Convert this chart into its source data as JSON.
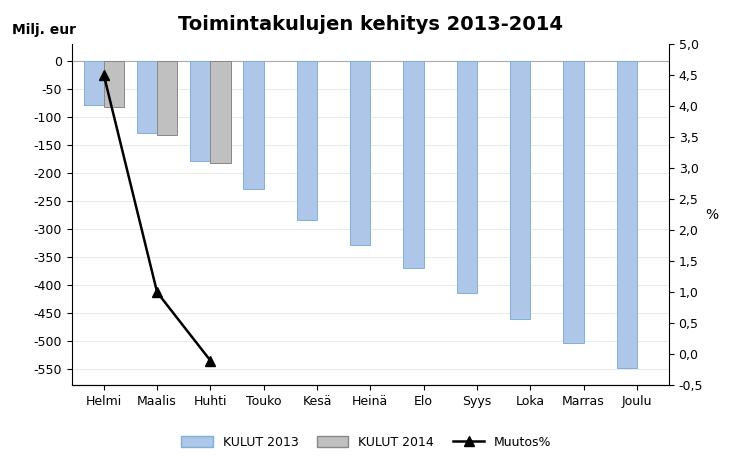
{
  "title": "Toimintakulujen kehitys 2013-2014",
  "ylabel_left": "Milj. eur",
  "ylabel_right": "%",
  "categories": [
    "Helmi",
    "Maalis",
    "Huhti",
    "Touko",
    "Kesä",
    "Heinä",
    "Elo",
    "Syys",
    "Loka",
    "Marras",
    "Joulu"
  ],
  "kulut2013": [
    -80,
    -130,
    -180,
    -230,
    -285,
    -330,
    -370,
    -415,
    -462,
    -505,
    -548
  ],
  "kulut2014": [
    -82,
    -133,
    -182,
    null,
    null,
    null,
    null,
    null,
    null,
    null,
    null
  ],
  "muutos_pct": [
    4.5,
    1.0,
    -0.1,
    null,
    null,
    null,
    null,
    null,
    null,
    null,
    null
  ],
  "bar_color_2013": "#aec6e8",
  "bar_color_2014": "#c0c0c0",
  "bar_edge_2013": "#7fb0d8",
  "bar_edge_2014": "#888888",
  "line_color": "#000000",
  "ylim_left": [
    -580,
    30
  ],
  "ylim_right": [
    -0.5,
    5.0
  ],
  "yticks_left": [
    -550,
    -500,
    -450,
    -400,
    -350,
    -300,
    -250,
    -200,
    -150,
    -100,
    -50,
    0
  ],
  "yticks_right": [
    -0.5,
    0.0,
    0.5,
    1.0,
    1.5,
    2.0,
    2.5,
    3.0,
    3.5,
    4.0,
    4.5,
    5.0
  ],
  "legend_labels": [
    "KULUT 2013",
    "KULUT 2014",
    "Muutos%"
  ],
  "background_color": "#ffffff",
  "title_fontsize": 14,
  "label_fontsize": 10,
  "tick_fontsize": 9,
  "bar_width": 0.38,
  "hline_color": "#aaaaaa",
  "hline_lw": 0.8
}
